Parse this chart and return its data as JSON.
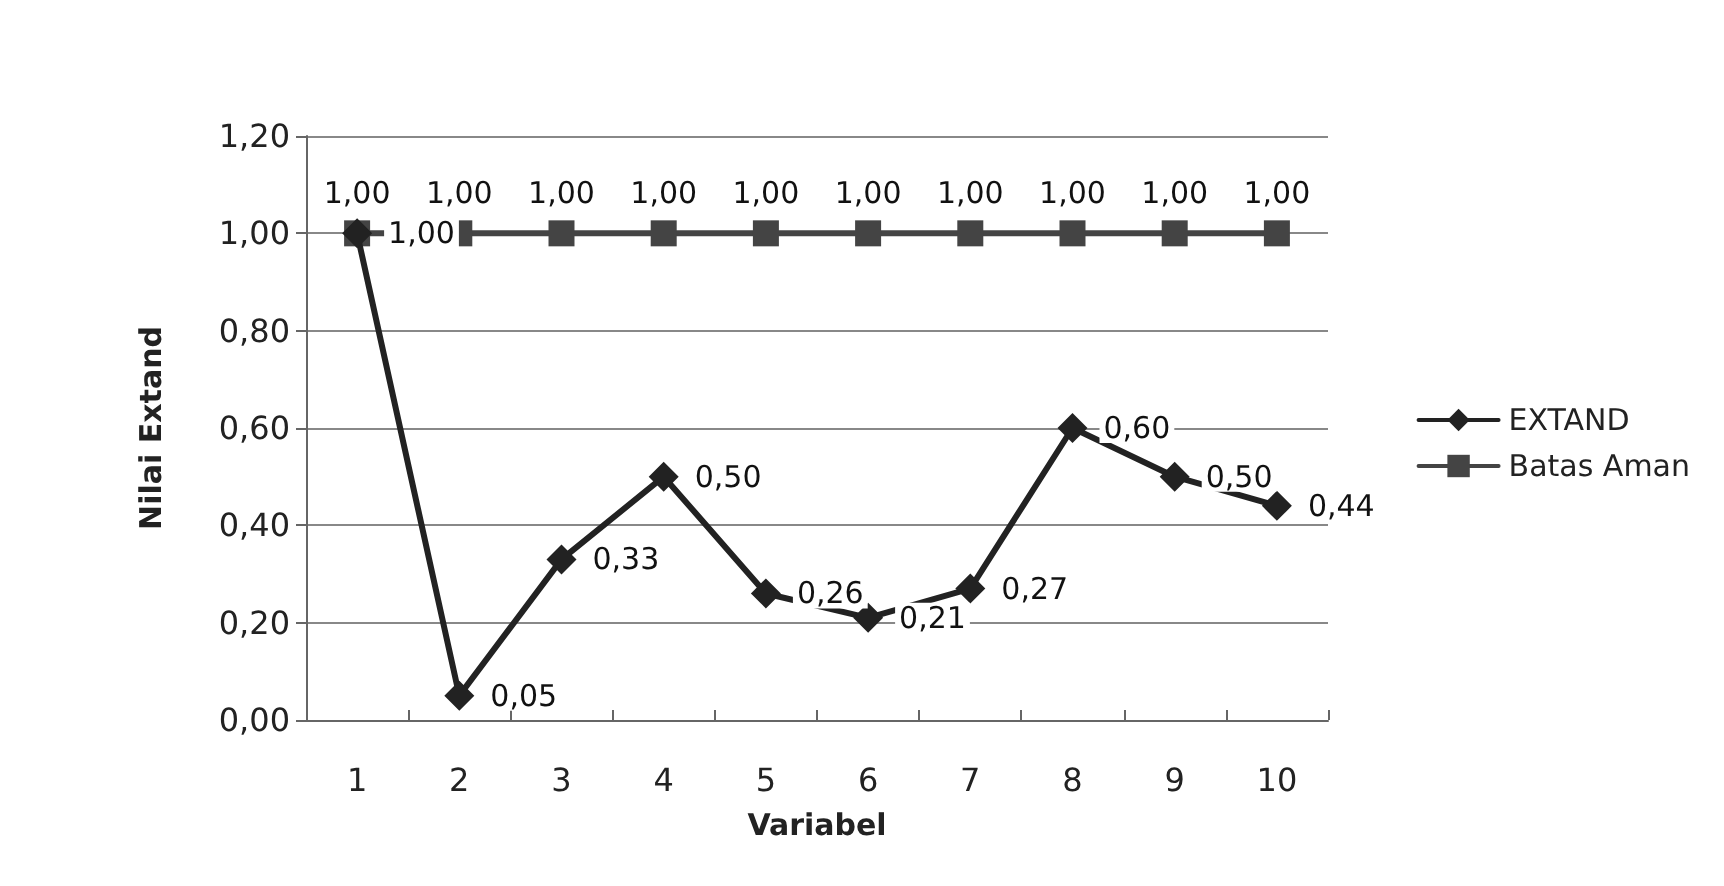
{
  "chart_data": {
    "type": "line",
    "xlabel": "Variabel",
    "ylabel": "Nilai Extand",
    "categories": [
      "1",
      "2",
      "3",
      "4",
      "5",
      "6",
      "7",
      "8",
      "9",
      "10"
    ],
    "series": [
      {
        "name": "EXTAND",
        "color": "#222222",
        "marker": "diamond",
        "values": [
          1.0,
          0.05,
          0.33,
          0.5,
          0.26,
          0.21,
          0.27,
          0.6,
          0.5,
          0.44
        ],
        "value_labels": [
          "1,00",
          "0,05",
          "0,33",
          "0,50",
          "0,26",
          "0,21",
          "0,27",
          "0,60",
          "0,50",
          "0,44"
        ]
      },
      {
        "name": "Batas Aman",
        "color": "#444444",
        "marker": "square",
        "values": [
          1.0,
          1.0,
          1.0,
          1.0,
          1.0,
          1.0,
          1.0,
          1.0,
          1.0,
          1.0
        ],
        "value_labels": [
          "1,00",
          "1,00",
          "1,00",
          "1,00",
          "1,00",
          "1,00",
          "1,00",
          "1,00",
          "1,00",
          "1,00"
        ]
      }
    ],
    "ylim": [
      0,
      1.2
    ],
    "yticks": [
      {
        "value": 0,
        "label": "0,00"
      },
      {
        "value": 0.2,
        "label": "0,20"
      },
      {
        "value": 0.4,
        "label": "0,40"
      },
      {
        "value": 0.6,
        "label": "0,60"
      },
      {
        "value": 0.8,
        "label": "0,80"
      },
      {
        "value": 1.0,
        "label": "1,00"
      },
      {
        "value": 1.2,
        "label": "1,20"
      }
    ],
    "grid": "y",
    "legend": "right",
    "line_style": "solid"
  }
}
